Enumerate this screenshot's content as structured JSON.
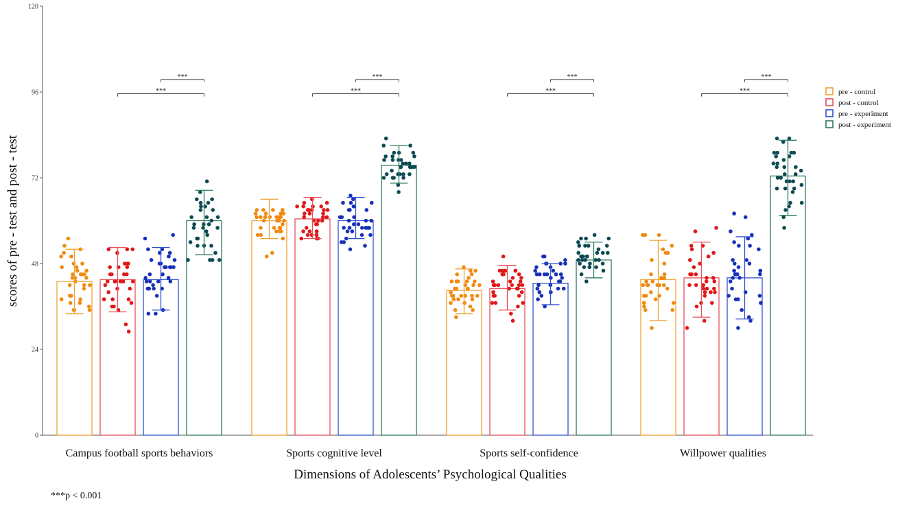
{
  "chart_data": {
    "type": "bar",
    "title": "",
    "xlabel": "Dimensions of Adolescents’ Psychological Qualities",
    "ylabel": "scores of pre - test and post - test",
    "ylim": [
      0,
      120
    ],
    "yticks": [
      "0",
      "24",
      "48",
      "72",
      "96",
      "120"
    ],
    "grid": false,
    "legend_position": "top-right",
    "categories": [
      "Campus football sports behaviors",
      "Sports cognitive level",
      "Sports self-confidence",
      "Willpower qualities"
    ],
    "series": [
      {
        "name": "pre - control",
        "color": "#F0A030",
        "dot_color": "#F08A10",
        "values": [
          43,
          60,
          40.5,
          43.5
        ],
        "error_low": [
          34,
          55,
          34,
          32
        ],
        "error_high": [
          52,
          66,
          46.5,
          54.5
        ]
      },
      {
        "name": "post - control",
        "color": "#E8505A",
        "dot_color": "#E01818",
        "values": [
          43.5,
          60.5,
          41,
          44
        ],
        "error_low": [
          34.5,
          55,
          35,
          33
        ],
        "error_high": [
          52.5,
          66.5,
          47.5,
          54
        ]
      },
      {
        "name": "pre - experiment",
        "color": "#3050D0",
        "dot_color": "#1830B8",
        "values": [
          43.5,
          60,
          42.5,
          44
        ],
        "error_low": [
          35,
          55,
          36.5,
          32.5
        ],
        "error_high": [
          52.5,
          66.5,
          48,
          55.5
        ]
      },
      {
        "name": "post - experiment",
        "color": "#2E7A5E",
        "dot_color": "#0E4A52",
        "values": [
          60,
          75.5,
          49,
          72.5
        ],
        "error_low": [
          50.5,
          70.5,
          44,
          61.5
        ],
        "error_high": [
          68.5,
          81,
          54,
          82.5
        ]
      }
    ],
    "significance": [
      {
        "category": 0,
        "from_series": 2,
        "to_series": 3,
        "label": "***",
        "y": 99.5
      },
      {
        "category": 0,
        "from_series": 1,
        "to_series": 3,
        "label": "***",
        "y": 95.5
      },
      {
        "category": 1,
        "from_series": 2,
        "to_series": 3,
        "label": "***",
        "y": 99.5
      },
      {
        "category": 1,
        "from_series": 1,
        "to_series": 3,
        "label": "***",
        "y": 95.5
      },
      {
        "category": 2,
        "from_series": 2,
        "to_series": 3,
        "label": "***",
        "y": 99.5
      },
      {
        "category": 2,
        "from_series": 1,
        "to_series": 3,
        "label": "***",
        "y": 95.5
      },
      {
        "category": 3,
        "from_series": 2,
        "to_series": 3,
        "label": "***",
        "y": 99.5
      },
      {
        "category": 3,
        "from_series": 1,
        "to_series": 3,
        "label": "***",
        "y": 95.5
      }
    ],
    "footnote": "***p < 0.001"
  }
}
